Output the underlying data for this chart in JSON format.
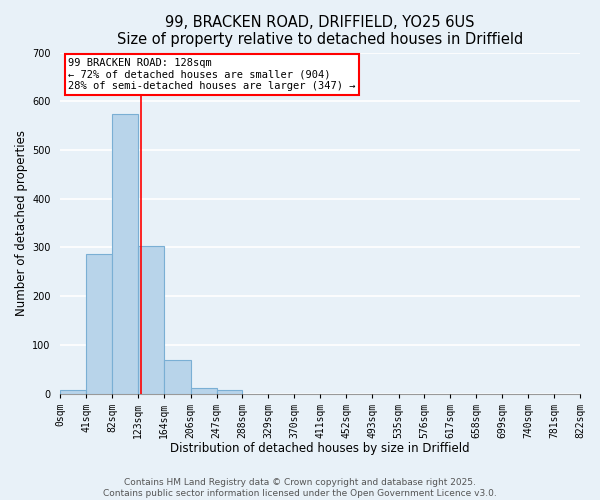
{
  "title_line1": "99, BRACKEN ROAD, DRIFFIELD, YO25 6US",
  "title_line2": "Size of property relative to detached houses in Driffield",
  "xlabel": "Distribution of detached houses by size in Driffield",
  "ylabel": "Number of detached properties",
  "bar_edges": [
    0,
    41,
    82,
    123,
    164,
    206,
    247,
    288,
    329,
    370,
    411,
    452,
    493,
    535,
    576,
    617,
    658,
    699,
    740,
    781,
    822
  ],
  "bar_heights": [
    7,
    287,
    575,
    303,
    68,
    12,
    8,
    0,
    0,
    0,
    0,
    0,
    0,
    0,
    0,
    0,
    0,
    0,
    0,
    0
  ],
  "bar_color": "#b8d4ea",
  "bar_edgecolor": "#7aafd4",
  "tick_labels": [
    "0sqm",
    "41sqm",
    "82sqm",
    "123sqm",
    "164sqm",
    "206sqm",
    "247sqm",
    "288sqm",
    "329sqm",
    "370sqm",
    "411sqm",
    "452sqm",
    "493sqm",
    "535sqm",
    "576sqm",
    "617sqm",
    "658sqm",
    "699sqm",
    "740sqm",
    "781sqm",
    "822sqm"
  ],
  "ylim": [
    0,
    700
  ],
  "yticks": [
    0,
    100,
    200,
    300,
    400,
    500,
    600,
    700
  ],
  "annotation_title": "99 BRACKEN ROAD: 128sqm",
  "annotation_line2": "← 72% of detached houses are smaller (904)",
  "annotation_line3": "28% of semi-detached houses are larger (347) →",
  "annotation_box_facecolor": "white",
  "annotation_box_edgecolor": "red",
  "vline_color": "red",
  "vline_x": 128,
  "footer_line1": "Contains HM Land Registry data © Crown copyright and database right 2025.",
  "footer_line2": "Contains public sector information licensed under the Open Government Licence v3.0.",
  "background_color": "#e8f1f8",
  "grid_color": "white",
  "title_fontsize": 10.5,
  "axis_label_fontsize": 8.5,
  "tick_fontsize": 7,
  "annotation_fontsize": 7.5,
  "footer_fontsize": 6.5
}
